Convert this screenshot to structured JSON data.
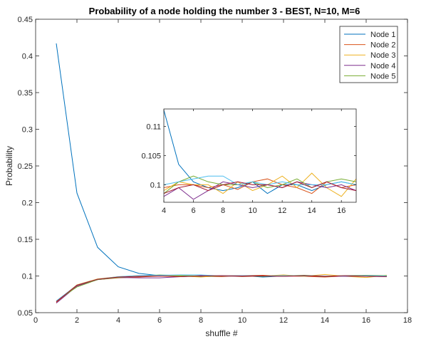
{
  "chart_data": [
    {
      "type": "line",
      "title": "Probability of a node holding the number 3 - BEST, N=10, M=6",
      "xlabel": "shuffle #",
      "ylabel": "Probability",
      "xlim": [
        0,
        18
      ],
      "ylim": [
        0.05,
        0.45
      ],
      "xticks": [
        0,
        2,
        4,
        6,
        8,
        10,
        12,
        14,
        16,
        18
      ],
      "yticks": [
        0.05,
        0.1,
        0.15,
        0.2,
        0.25,
        0.3,
        0.35,
        0.4,
        0.45
      ],
      "xtick_labels": [
        "0",
        "2",
        "4",
        "6",
        "8",
        "10",
        "12",
        "14",
        "16",
        "18"
      ],
      "ytick_labels": [
        "0.05",
        "0.1",
        "0.15",
        "0.2",
        "0.25",
        "0.3",
        "0.35",
        "0.4",
        "0.45"
      ],
      "grid": false,
      "legend_position": "top-right",
      "x": [
        1,
        2,
        3,
        4,
        5,
        6,
        7,
        8,
        9,
        10,
        11,
        12,
        13,
        14,
        15,
        16,
        17
      ],
      "series": [
        {
          "name": "Node 1",
          "color": "#0072BD",
          "values": [
            0.417,
            0.213,
            0.139,
            0.1125,
            0.1035,
            0.1005,
            0.1,
            0.099,
            0.0995,
            0.1005,
            0.0985,
            0.1,
            0.1,
            0.099,
            0.1,
            0.1005,
            0.1
          ]
        },
        {
          "name": "Node 2",
          "color": "#D95319",
          "values": [
            0.064,
            0.087,
            0.095,
            0.0975,
            0.0985,
            0.1,
            0.0995,
            0.1,
            0.099,
            0.1005,
            0.101,
            0.1,
            0.0995,
            0.0985,
            0.1,
            0.0995,
            0.1
          ]
        },
        {
          "name": "Node 3",
          "color": "#EDB120",
          "values": [
            0.065,
            0.088,
            0.096,
            0.099,
            0.1005,
            0.1,
            0.1,
            0.0985,
            0.1005,
            0.099,
            0.1,
            0.1015,
            0.0995,
            0.102,
            0.0995,
            0.098,
            0.101
          ]
        },
        {
          "name": "Node 4",
          "color": "#7E2F8E",
          "values": [
            0.063,
            0.086,
            0.095,
            0.098,
            0.0975,
            0.0975,
            0.099,
            0.1005,
            0.1,
            0.0995,
            0.1,
            0.0995,
            0.1005,
            0.1,
            0.0995,
            0.1,
            0.099
          ]
        },
        {
          "name": "Node 5",
          "color": "#77AC30",
          "values": [
            0.066,
            0.085,
            0.095,
            0.098,
            0.1,
            0.1015,
            0.1005,
            0.1,
            0.1,
            0.1005,
            0.0995,
            0.1,
            0.101,
            0.0995,
            0.1005,
            0.101,
            0.1005
          ]
        }
      ],
      "extra_series": [
        {
          "color": "#4DBEEE",
          "values": [
            0.066,
            0.0875,
            0.0955,
            0.099,
            0.1005,
            0.101,
            0.1015,
            0.1015,
            0.1,
            0.1005,
            0.1,
            0.1005,
            0.1,
            0.1,
            0.1,
            0.1005,
            0.1
          ]
        },
        {
          "color": "#A2142F",
          "values": [
            0.065,
            0.0875,
            0.0955,
            0.0985,
            0.0995,
            0.1,
            0.099,
            0.1,
            0.1005,
            0.1,
            0.1,
            0.0995,
            0.1005,
            0.0995,
            0.1005,
            0.0995,
            0.099
          ]
        }
      ]
    },
    {
      "type": "line",
      "xlim": [
        4,
        17
      ],
      "ylim": [
        0.097,
        0.113
      ],
      "xticks": [
        4,
        6,
        8,
        10,
        12,
        14,
        16
      ],
      "yticks": [
        0.1,
        0.105,
        0.11
      ],
      "xtick_labels": [
        "4",
        "6",
        "8",
        "10",
        "12",
        "14",
        "16"
      ],
      "ytick_labels": [
        "0.1",
        "0.105",
        "0.11"
      ],
      "grid": false,
      "x": [
        4,
        5,
        6,
        7,
        8,
        9,
        10,
        11,
        12,
        13,
        14,
        15,
        16,
        17
      ],
      "series": [
        {
          "color": "#0072BD",
          "values": [
            0.1128,
            0.1035,
            0.1005,
            0.0995,
            0.099,
            0.0995,
            0.1005,
            0.0985,
            0.1,
            0.1,
            0.099,
            0.1,
            0.1005,
            0.1
          ]
        },
        {
          "color": "#D95319",
          "values": [
            0.0995,
            0.1,
            0.1,
            0.0995,
            0.1,
            0.0992,
            0.1005,
            0.101,
            0.1,
            0.0995,
            0.0985,
            0.1005,
            0.0995,
            0.1
          ]
        },
        {
          "color": "#EDB120",
          "values": [
            0.099,
            0.1005,
            0.1,
            0.1,
            0.0985,
            0.1005,
            0.099,
            0.1,
            0.1015,
            0.0995,
            0.102,
            0.0995,
            0.098,
            0.101
          ]
        },
        {
          "color": "#7E2F8E",
          "values": [
            0.098,
            0.0995,
            0.0975,
            0.099,
            0.1005,
            0.1,
            0.0995,
            0.1,
            0.0995,
            0.1005,
            0.1,
            0.0995,
            0.1,
            0.099
          ]
        },
        {
          "color": "#77AC30",
          "values": [
            0.0985,
            0.1005,
            0.1015,
            0.1005,
            0.1,
            0.1,
            0.1005,
            0.0995,
            0.1,
            0.101,
            0.0995,
            0.1005,
            0.101,
            0.1005
          ]
        },
        {
          "color": "#4DBEEE",
          "values": [
            0.1,
            0.1005,
            0.101,
            0.1015,
            0.1015,
            0.1,
            0.1005,
            0.1,
            0.1005,
            0.1,
            0.1,
            0.1,
            0.1005,
            0.1
          ]
        },
        {
          "color": "#A2142F",
          "values": [
            0.0985,
            0.0995,
            0.1,
            0.099,
            0.1,
            0.1005,
            0.1,
            0.1,
            0.0995,
            0.1005,
            0.0995,
            0.1005,
            0.0995,
            0.099
          ]
        }
      ]
    }
  ]
}
